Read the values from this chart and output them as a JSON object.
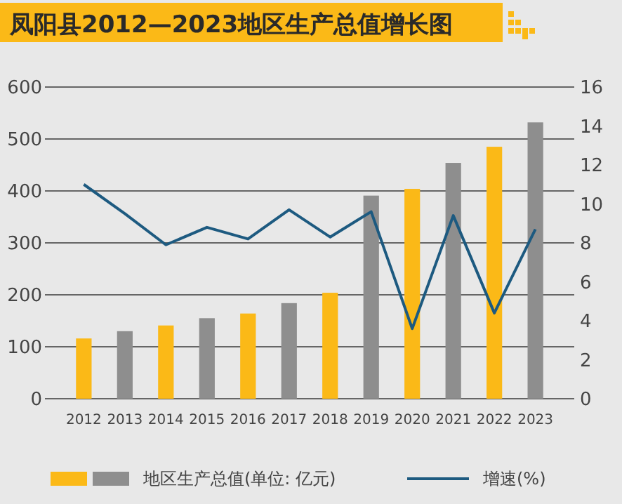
{
  "chart_data": {
    "type": "bar",
    "title": "凤阳县2012—2023地区生产总值增长图",
    "categories": [
      "2012",
      "2013",
      "2014",
      "2015",
      "2016",
      "2017",
      "2018",
      "2019",
      "2020",
      "2021",
      "2022",
      "2023"
    ],
    "series": [
      {
        "name": "地区生产总值(单位: 亿元)",
        "colors": [
          "#fbb917",
          "#8e8e8e",
          "#fbb917",
          "#8e8e8e",
          "#fbb917",
          "#8e8e8e",
          "#fbb917",
          "#8e8e8e",
          "#fbb917",
          "#8e8e8e",
          "#fbb917",
          "#8e8e8e"
        ],
        "values": [
          116,
          130,
          141,
          155,
          164,
          184,
          204,
          391,
          404,
          454,
          485,
          532
        ]
      },
      {
        "name": "增速(%)",
        "type": "line",
        "axis": "y2",
        "color": "#1d5a80",
        "values": [
          11.0,
          9.5,
          7.9,
          8.8,
          8.2,
          9.7,
          8.3,
          9.6,
          3.6,
          9.4,
          4.4,
          8.7
        ]
      }
    ],
    "ylim": [
      0,
      600
    ],
    "yticks": [
      0,
      100,
      200,
      300,
      400,
      500,
      600
    ],
    "y2lim": [
      0,
      16
    ],
    "y2ticks": [
      0,
      2,
      4,
      6,
      8,
      10,
      12,
      14,
      16
    ],
    "grid": "y",
    "legend": "bottom"
  }
}
